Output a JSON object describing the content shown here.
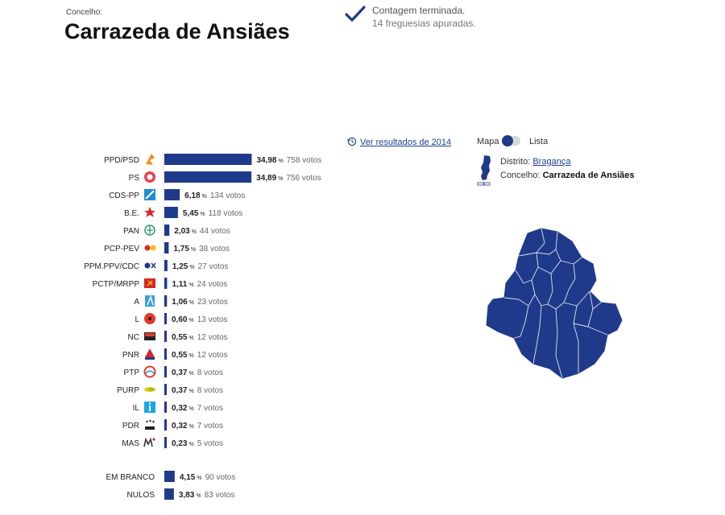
{
  "header": {
    "label": "Concelho:",
    "title": "Carrazeda de Ansiães",
    "status_line1": "Contagem terminada.",
    "status_line2": "14 freguesias apuradas."
  },
  "controls": {
    "results_link": "Ver resultados de 2014",
    "toggle_left": "Mapa",
    "toggle_right": "Lista",
    "district_label": "Distrito:",
    "district_value": "Bragança",
    "concelho_label": "Concelho:",
    "concelho_value": "Carrazeda de Ansiães"
  },
  "colors": {
    "bar": "#1f3a8a",
    "accent": "#1c3f94",
    "map": "#1f3a8a"
  },
  "chart_data": {
    "type": "bar",
    "orientation": "horizontal",
    "value_unit": "%",
    "votes_suffix": "votos",
    "bars": [
      {
        "party": "PPD/PSD",
        "pct": 34.98,
        "pct_label": "34,98",
        "votes": 758,
        "icon": "psd-logo-icon"
      },
      {
        "party": "PS",
        "pct": 34.89,
        "pct_label": "34,89",
        "votes": 756,
        "icon": "ps-logo-icon"
      },
      {
        "party": "CDS-PP",
        "pct": 6.18,
        "pct_label": "6,18",
        "votes": 134,
        "icon": "cds-logo-icon"
      },
      {
        "party": "B.E.",
        "pct": 5.45,
        "pct_label": "5,45",
        "votes": 118,
        "icon": "be-logo-icon"
      },
      {
        "party": "PAN",
        "pct": 2.03,
        "pct_label": "2,03",
        "votes": 44,
        "icon": "pan-logo-icon"
      },
      {
        "party": "PCP-PEV",
        "pct": 1.75,
        "pct_label": "1,75",
        "votes": 38,
        "icon": "cdu-logo-icon"
      },
      {
        "party": "PPM.PPV/CDC",
        "pct": 1.25,
        "pct_label": "1,25",
        "votes": 27,
        "icon": "ppm-logo-icon"
      },
      {
        "party": "PCTP/MRPP",
        "pct": 1.11,
        "pct_label": "1,11",
        "votes": 24,
        "icon": "mrpp-logo-icon"
      },
      {
        "party": "A",
        "pct": 1.06,
        "pct_label": "1,06",
        "votes": 23,
        "icon": "aliança-logo-icon"
      },
      {
        "party": "L",
        "pct": 0.6,
        "pct_label": "0,60",
        "votes": 13,
        "icon": "livre-logo-icon"
      },
      {
        "party": "NC",
        "pct": 0.55,
        "pct_label": "0,55",
        "votes": 12,
        "icon": "nc-logo-icon"
      },
      {
        "party": "PNR",
        "pct": 0.55,
        "pct_label": "0,55",
        "votes": 12,
        "icon": "pnr-logo-icon"
      },
      {
        "party": "PTP",
        "pct": 0.37,
        "pct_label": "0,37",
        "votes": 8,
        "icon": "ptp-logo-icon"
      },
      {
        "party": "PURP",
        "pct": 0.37,
        "pct_label": "0,37",
        "votes": 8,
        "icon": "purp-logo-icon"
      },
      {
        "party": "IL",
        "pct": 0.32,
        "pct_label": "0,32",
        "votes": 7,
        "icon": "il-logo-icon"
      },
      {
        "party": "PDR",
        "pct": 0.32,
        "pct_label": "0,32",
        "votes": 7,
        "icon": "pdr-logo-icon"
      },
      {
        "party": "MAS",
        "pct": 0.23,
        "pct_label": "0,23",
        "votes": 5,
        "icon": "mas-logo-icon"
      }
    ],
    "extra_bars": [
      {
        "party": "EM BRANCO",
        "pct": 4.15,
        "pct_label": "4,15",
        "votes": 90
      },
      {
        "party": "NULOS",
        "pct": 3.83,
        "pct_label": "3,83",
        "votes": 83
      }
    ]
  }
}
